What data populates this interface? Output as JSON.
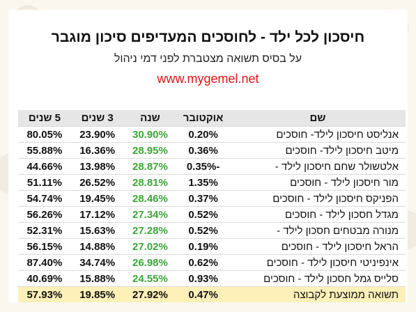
{
  "title": "חיסכון לכל ילד - לחוסכים המעדיפים סיכון מוגבר",
  "subtitle": "על בסיס תשואה מצטברת לפני דמי ניהול",
  "site": "www.mygemel.net",
  "headers": {
    "name": "שם",
    "october": "אוקטובר",
    "year": "שנה",
    "three_years": "3 שנים",
    "five_years": "5 שנים"
  },
  "rows": [
    {
      "name": "אנליסט חיסכון לילד- חוסכים",
      "october": "0.20%",
      "year": "30.90%",
      "three_years": "23.90%",
      "five_years": "80.05%"
    },
    {
      "name": "מיטב חיסכון לילד- חוסכים",
      "october": "0.36%",
      "year": "28.95%",
      "three_years": "16.36%",
      "five_years": "55.88%"
    },
    {
      "name": "אלטשולר שחם חיסכון לילד -",
      "october": "-0.35%",
      "year": "28.87%",
      "three_years": "13.98%",
      "five_years": "44.66%"
    },
    {
      "name": "מור חיסכון לילד - חוסכים",
      "october": "1.35%",
      "year": "28.81%",
      "three_years": "26.52%",
      "five_years": "51.11%"
    },
    {
      "name": "הפניקס חיסכון לילד - חוסכים",
      "october": "0.37%",
      "year": "28.46%",
      "three_years": "19.45%",
      "five_years": "54.74%"
    },
    {
      "name": "מגדל חסכון לילד - חוסכים",
      "october": "0.52%",
      "year": "27.34%",
      "three_years": "17.12%",
      "five_years": "56.26%"
    },
    {
      "name": "מנורה מבטחים חסכון לילד -",
      "october": "0.52%",
      "year": "27.28%",
      "three_years": "15.63%",
      "five_years": "52.31%"
    },
    {
      "name": "הראל חיסכון לילד - חוסכים",
      "october": "0.19%",
      "year": "27.02%",
      "three_years": "14.88%",
      "five_years": "56.15%"
    },
    {
      "name": "אינפיניטי חיסכון לילד - חוסכים",
      "october": "0.62%",
      "year": "26.98%",
      "three_years": "34.74%",
      "five_years": "87.40%"
    },
    {
      "name": "סלייס גמל חסכון לילד - חוסכים",
      "october": "0.93%",
      "year": "24.55%",
      "three_years": "15.88%",
      "five_years": "40.69%"
    }
  ],
  "average": {
    "name": "תשואה ממוצעת לקבוצה",
    "october": "0.47%",
    "year": "27.92%",
    "three_years": "19.85%",
    "five_years": "57.93%"
  },
  "colors": {
    "accent_green": "#3aa835",
    "site_red": "#e01515",
    "average_highlight": "#fdf0b8",
    "header_gray": "#e6e6e6"
  }
}
